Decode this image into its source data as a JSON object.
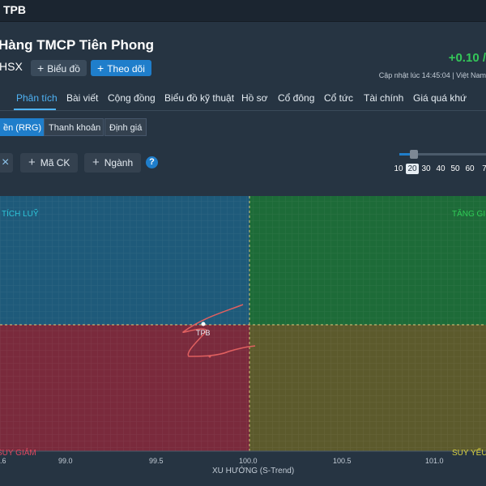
{
  "header": {
    "title": "TPB",
    "company_name": "Hàng TMCP Tiên Phong",
    "exchange": "HSX",
    "chart_button": "Biểu đồ",
    "follow_button": "Theo dõi",
    "price_change": "+0.10 /",
    "updated": "Cập nhật lúc  14:45:04 | Việt Nam"
  },
  "tabs": [
    "Phân tích",
    "Bài viết",
    "Cộng đồng",
    "Biểu đồ kỹ thuật",
    "Hồ sơ",
    "Cổ đông",
    "Cổ tức",
    "Tài chính",
    "Giá quá khứ"
  ],
  "subtabs": [
    "ền (RRG)",
    "Thanh khoản",
    "Định giá"
  ],
  "toolbar": {
    "close": "×",
    "add_symbol": "Mã CK",
    "add_industry": "Ngành",
    "help": "?"
  },
  "periods": [
    "10",
    "20",
    "30",
    "40",
    "50",
    "60",
    "7"
  ],
  "selected_period": 1,
  "chart_data": {
    "type": "scatter",
    "xlabel": "XU HƯỚNG (S-Trend)",
    "x_ticks": [
      ".6",
      "99.0",
      "99.5",
      "100.0",
      "100.5",
      "101.0"
    ],
    "quadrants": {
      "top_left": "TÍCH LUỸ",
      "top_right": "TĂNG GI",
      "bottom_left": "SUY GIẢM",
      "bottom_right": "SUY YẾU"
    },
    "point_label": "TPB",
    "colors": {
      "accumulation": "#1e5a7a",
      "improving": "#1d6b38",
      "declining": "#7a2a3c",
      "weakening": "#5c5a2c",
      "trail": "#e06060"
    }
  }
}
